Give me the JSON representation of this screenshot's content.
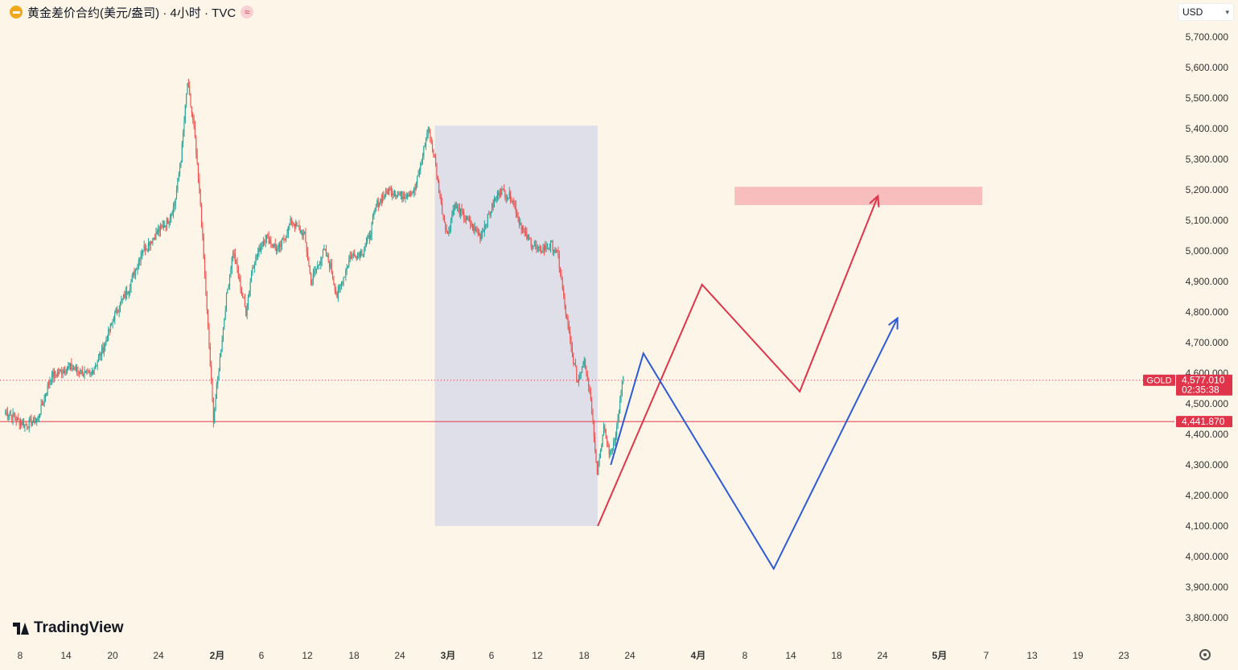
{
  "header": {
    "title": "黄金差价合约(美元/盎司) · 4小时 · TVC",
    "symbol_icon": "gold-coin-icon",
    "status_icon": "wave-icon",
    "status_glyph": "≈"
  },
  "currency": {
    "label": "USD",
    "icon": "chevron-down-icon"
  },
  "logo": {
    "text": "TradingView",
    "icon": "tradingview-logo-icon"
  },
  "colors": {
    "background": "#fdf6e8",
    "up": "#26a69a",
    "down": "#ef5350",
    "red_path": "#e0344a",
    "blue_path": "#2d5bd8",
    "box_fill": "#dedfe8",
    "target_zone": "#f7b8b8",
    "price_label": "#e0344a",
    "axis_text": "#555555"
  },
  "chart_data": {
    "type": "candlestick",
    "title": "黄金差价合约(美元/盎司) · 4小时 · TVC",
    "ylim": [
      3760,
      5760
    ],
    "y_ticks": [
      "5,700.000",
      "5,600.000",
      "5,500.000",
      "5,400.000",
      "5,300.000",
      "5,200.000",
      "5,100.000",
      "5,000.000",
      "4,900.000",
      "4,800.000",
      "4,700.000",
      "4,600.000",
      "4,500.000",
      "4,400.000",
      "4,300.000",
      "4,200.000",
      "4,100.000",
      "4,000.000",
      "3,900.000",
      "3,800.000"
    ],
    "x_ticks": [
      {
        "label": "8",
        "bold": false
      },
      {
        "label": "14",
        "bold": false
      },
      {
        "label": "20",
        "bold": false
      },
      {
        "label": "24",
        "bold": false
      },
      {
        "label": "2月",
        "bold": true
      },
      {
        "label": "6",
        "bold": false
      },
      {
        "label": "12",
        "bold": false
      },
      {
        "label": "18",
        "bold": false
      },
      {
        "label": "24",
        "bold": false
      },
      {
        "label": "3月",
        "bold": true
      },
      {
        "label": "6",
        "bold": false
      },
      {
        "label": "12",
        "bold": false
      },
      {
        "label": "18",
        "bold": false
      },
      {
        "label": "24",
        "bold": false
      },
      {
        "label": "4月",
        "bold": true
      },
      {
        "label": "8",
        "bold": false
      },
      {
        "label": "14",
        "bold": false
      },
      {
        "label": "18",
        "bold": false
      },
      {
        "label": "24",
        "bold": false
      },
      {
        "label": "5月",
        "bold": true
      },
      {
        "label": "7",
        "bold": false
      },
      {
        "label": "13",
        "bold": false
      },
      {
        "label": "19",
        "bold": false
      },
      {
        "label": "23",
        "bold": false
      }
    ],
    "price_path": [
      [
        0,
        4475
      ],
      [
        3,
        4430
      ],
      [
        5,
        4450
      ],
      [
        7,
        4590
      ],
      [
        10,
        4620
      ],
      [
        13,
        4590
      ],
      [
        15,
        4680
      ],
      [
        17,
        4800
      ],
      [
        19,
        4880
      ],
      [
        21,
        5000
      ],
      [
        23,
        5050
      ],
      [
        25,
        5100
      ],
      [
        26,
        5150
      ],
      [
        27,
        5300
      ],
      [
        28,
        5550
      ],
      [
        29,
        5400
      ],
      [
        30,
        5150
      ],
      [
        31,
        4800
      ],
      [
        32,
        4450
      ],
      [
        33,
        4650
      ],
      [
        34,
        4850
      ],
      [
        35,
        5000
      ],
      [
        37,
        4800
      ],
      [
        38,
        4950
      ],
      [
        40,
        5050
      ],
      [
        42,
        5000
      ],
      [
        44,
        5100
      ],
      [
        46,
        5050
      ],
      [
        47,
        4900
      ],
      [
        49,
        5000
      ],
      [
        50,
        4950
      ],
      [
        51,
        4850
      ],
      [
        53,
        4980
      ],
      [
        55,
        5000
      ],
      [
        56,
        5050
      ],
      [
        57,
        5150
      ],
      [
        59,
        5200
      ],
      [
        61,
        5180
      ],
      [
        63,
        5200
      ],
      [
        64,
        5300
      ],
      [
        65,
        5400
      ],
      [
        66,
        5300
      ],
      [
        67,
        5150
      ],
      [
        68,
        5050
      ],
      [
        69,
        5150
      ],
      [
        71,
        5100
      ],
      [
        73,
        5050
      ],
      [
        75,
        5150
      ],
      [
        76,
        5200
      ],
      [
        78,
        5170
      ],
      [
        79,
        5100
      ],
      [
        80,
        5050
      ],
      [
        82,
        5000
      ],
      [
        84,
        5020
      ],
      [
        85,
        4980
      ],
      [
        86,
        4820
      ],
      [
        87,
        4680
      ],
      [
        88,
        4570
      ],
      [
        89,
        4650
      ],
      [
        90,
        4520
      ],
      [
        91,
        4280
      ],
      [
        92,
        4420
      ],
      [
        93,
        4330
      ],
      [
        94,
        4420
      ],
      [
        95,
        4590
      ]
    ],
    "current_price": {
      "label": "GOLD",
      "value": "4,577.010",
      "countdown": "02:35:38"
    },
    "level_line": {
      "value": "4,441.870"
    },
    "shaded_range": {
      "from_index": 66,
      "to_index": 91,
      "price_low": 4100,
      "price_high": 5410
    },
    "target_zone": {
      "from_index": 112,
      "to_index": 150,
      "price_low": 5150,
      "price_high": 5210
    },
    "projection_red": [
      [
        91,
        4100
      ],
      [
        107,
        4890
      ],
      [
        122,
        4540
      ],
      [
        134,
        5180
      ]
    ],
    "projection_blue": [
      [
        93,
        4300
      ],
      [
        98,
        4665
      ],
      [
        118,
        3960
      ],
      [
        137,
        4780
      ]
    ]
  }
}
